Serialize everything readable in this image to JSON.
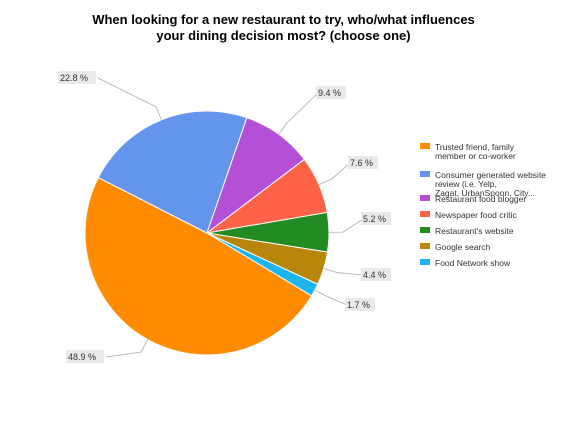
{
  "chart_data": {
    "type": "pie",
    "title_lines": [
      "When looking for a new restaurant to try, who/what influences",
      "your dining decision most? (choose one)"
    ],
    "slices": [
      {
        "name": "Trusted friend, family member or co-worker",
        "legend_lines": [
          "Trusted friend, family",
          "member or co-worker"
        ],
        "value": 48.9,
        "label": "48.9 %",
        "color": "#ff8c00"
      },
      {
        "name": "Consumer generated website review (i.e. Yelp, Zagat, UrbanSpoon, City...",
        "legend_lines": [
          "Consumer generated website",
          "review (i.e. Yelp,",
          "Zagat, UrbanSpoon, City..."
        ],
        "value": 22.8,
        "label": "22.8 %",
        "color": "#6495ed"
      },
      {
        "name": "Restaurant food blogger",
        "legend_lines": [
          "Restaurant food blogger"
        ],
        "value": 9.4,
        "label": "9.4 %",
        "color": "#b44fd6"
      },
      {
        "name": "Newspaper food critic",
        "legend_lines": [
          "Newspaper food critic"
        ],
        "value": 7.6,
        "label": "7.6 %",
        "color": "#ff6347"
      },
      {
        "name": "Restaurant's website",
        "legend_lines": [
          "Restaurant's website"
        ],
        "value": 5.2,
        "label": "5.2 %",
        "color": "#228b22"
      },
      {
        "name": "Google search",
        "legend_lines": [
          "Google search"
        ],
        "value": 4.4,
        "label": "4.4 %",
        "color": "#b8860b"
      },
      {
        "name": "Food Network show",
        "legend_lines": [
          "Food Network show"
        ],
        "value": 1.7,
        "label": "1.7 %",
        "color": "#1eb4f0"
      }
    ],
    "legend_position": "right"
  }
}
